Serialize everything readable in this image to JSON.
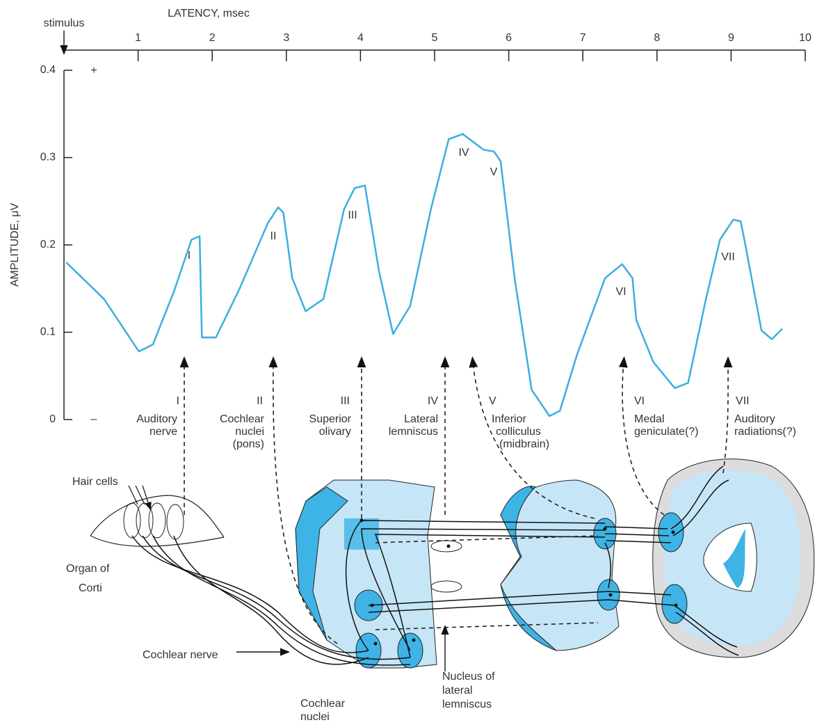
{
  "chart_data": {
    "type": "line",
    "title": "LATENCY, msec",
    "ylabel": "AMPLITUDE, μV",
    "stimulus_label": "stimulus",
    "plus_label": "+",
    "minus_label": "–",
    "color": "#3aaee0",
    "xlim": [
      0,
      10
    ],
    "xticks": [
      1,
      2,
      3,
      4,
      5,
      6,
      7,
      8,
      9,
      10
    ],
    "ylim": [
      0,
      0.4
    ],
    "yticks": [
      0,
      0.1,
      0.2,
      0.3,
      0.4
    ],
    "x": [
      0.03,
      0.54,
      1.01,
      1.2,
      1.48,
      1.72,
      1.83,
      1.86,
      2.05,
      2.37,
      2.75,
      2.89,
      2.96,
      3.08,
      3.26,
      3.5,
      3.78,
      3.92,
      4.06,
      4.25,
      4.44,
      4.67,
      4.95,
      5.19,
      5.38,
      5.66,
      5.8,
      5.89,
      6.08,
      6.31,
      6.55,
      6.69,
      6.92,
      7.3,
      7.53,
      7.67,
      7.72,
      7.95,
      8.24,
      8.42,
      8.66,
      8.85,
      9.03,
      9.13,
      9.17,
      9.41,
      9.55,
      9.69
    ],
    "values": [
      0.18,
      0.138,
      0.078,
      0.086,
      0.146,
      0.206,
      0.21,
      0.094,
      0.094,
      0.15,
      0.225,
      0.243,
      0.237,
      0.162,
      0.124,
      0.138,
      0.241,
      0.265,
      0.268,
      0.17,
      0.098,
      0.13,
      0.241,
      0.321,
      0.327,
      0.309,
      0.307,
      0.296,
      0.162,
      0.034,
      0.004,
      0.01,
      0.074,
      0.162,
      0.178,
      0.162,
      0.114,
      0.066,
      0.036,
      0.042,
      0.138,
      0.206,
      0.229,
      0.227,
      0.21,
      0.102,
      0.092,
      0.104
    ],
    "peak_labels": [
      "I",
      "II",
      "III",
      "IV",
      "V",
      "VI",
      "VII"
    ],
    "annotations": [
      {
        "numeral": "I",
        "lines": [
          "Auditory",
          "nerve"
        ]
      },
      {
        "numeral": "II",
        "lines": [
          "Cochlear",
          "nuclei",
          "(pons)"
        ]
      },
      {
        "numeral": "III",
        "lines": [
          "Superior",
          "olivary"
        ]
      },
      {
        "numeral": "IV",
        "lines": [
          "Lateral",
          "lemniscus"
        ]
      },
      {
        "numeral": "V",
        "lines": [
          "Inferior",
          "colliculus",
          "(midbrain)"
        ]
      },
      {
        "numeral": "VI",
        "lines": [
          "Medal",
          "geniculate(?)"
        ]
      },
      {
        "numeral": "VII",
        "lines": [
          "Auditory",
          "radiations(?)"
        ]
      }
    ]
  },
  "diagram": {
    "hair_cells": "Hair cells",
    "organ": [
      "Organ of",
      "Corti"
    ],
    "cochlear_nerve": "Cochlear nerve",
    "cochlear_nuclei": [
      "Cochlear",
      "nuclei"
    ],
    "nucleus_ll": [
      "Nucleus of",
      "lateral",
      "lemniscus"
    ]
  }
}
